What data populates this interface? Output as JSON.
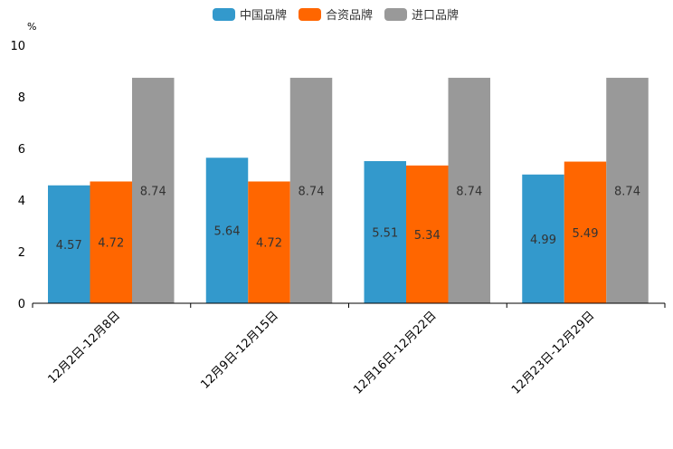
{
  "chart_data": {
    "type": "bar",
    "title": "",
    "xlabel": "",
    "ylabel": "",
    "unit": "%",
    "categories": [
      "12月2日-12月8日",
      "12月9日-12月15日",
      "12月16日-12月22日",
      "12月23日-12月29日"
    ],
    "series": [
      {
        "name": "中国品牌",
        "color": "#3399cc",
        "values": [
          4.57,
          5.64,
          5.51,
          4.99
        ]
      },
      {
        "name": "合资品牌",
        "color": "#ff6600",
        "values": [
          4.72,
          4.72,
          5.34,
          5.49
        ]
      },
      {
        "name": "进口品牌",
        "color": "#999999",
        "values": [
          8.74,
          8.74,
          8.74,
          8.74
        ]
      }
    ],
    "ylim": [
      0,
      10
    ],
    "yticks": [
      0,
      2,
      4,
      6,
      8,
      10
    ],
    "legend_position": "top-center",
    "grid": false,
    "data_labels": true
  }
}
